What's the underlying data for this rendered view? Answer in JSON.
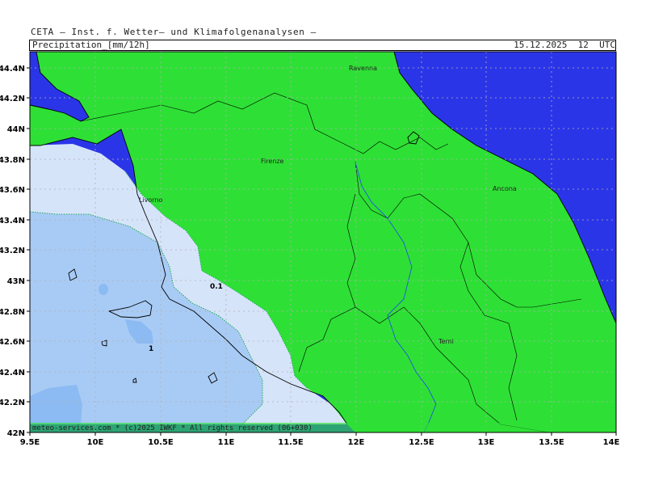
{
  "header": {
    "institute": "CETA — Inst. f. Wetter— und Klimafolgenanalysen —",
    "product": "Precipitation_[mm/12h]",
    "valid_time": "15.12.2025  12  UTC"
  },
  "axes": {
    "lat_labels": [
      "44.4N",
      "44.2N",
      "44N",
      "43.8N",
      "43.6N",
      "43.4N",
      "43.2N",
      "43N",
      "42.8N",
      "42.6N",
      "42.4N",
      "42.2N",
      "42N"
    ],
    "lon_labels": [
      "9.5E",
      "10E",
      "10.5E",
      "11E",
      "11.5E",
      "12E",
      "12.5E",
      "13E",
      "13.5E",
      "14E"
    ]
  },
  "cities": [
    {
      "name": "Ravenna"
    },
    {
      "name": "Firenze"
    },
    {
      "name": "Livorno"
    },
    {
      "name": "Ancona"
    },
    {
      "name": "Terni"
    }
  ],
  "contour_labels": [
    "0.1",
    "1"
  ],
  "footer": {
    "copyright": "meteo-services.com * (c)2025 IWKF * All rights reserved (06+030)"
  },
  "colors": {
    "sea": "#2b35e8",
    "land_dry": "#2ee035",
    "precip_0_1": "#d6e4fa",
    "precip_1": "#a8cbf5",
    "precip_2": "#8cbaf2",
    "border": "#000000",
    "river": "#2255dd",
    "grid": "#b0b0b0"
  }
}
